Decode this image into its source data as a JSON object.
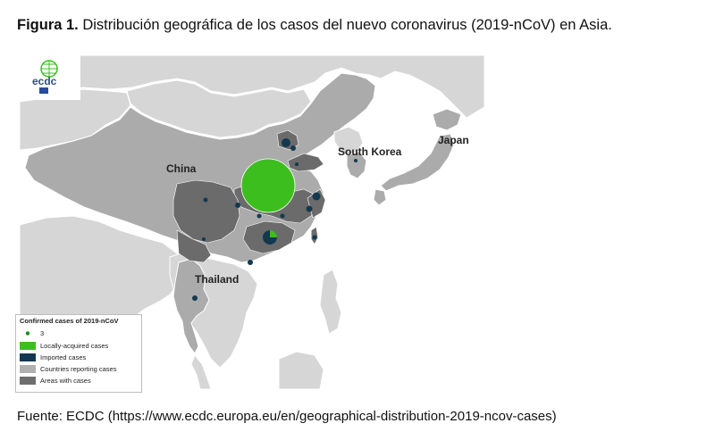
{
  "caption": {
    "bold": "Figura 1.",
    "text": " Distribución geográfica de los casos del nuevo coronavirus (2019-nCoV) en Asia."
  },
  "source": "Fuente: ECDC (https://www.ecdc.europa.eu/en/geographical-distribution-2019-ncov-cases)",
  "logo": {
    "text": "ecdc"
  },
  "map_labels": {
    "china": "China",
    "south_korea": "South Korea",
    "japan": "Japan",
    "thailand": "Thailand"
  },
  "legend": {
    "title": "Confirmed cases of 2019-nCoV",
    "items": [
      {
        "label": "3",
        "color": "#1e8a1e"
      },
      {
        "label": "Locally-acquired cases",
        "color": "#3cbf1e"
      },
      {
        "label": "Imported cases",
        "color": "#12394f"
      },
      {
        "label": "Countries reporting cases",
        "color": "#b0b0b0"
      },
      {
        "label": "Areas with cases",
        "color": "#6e6e6e"
      }
    ]
  },
  "colors": {
    "sea": "#ffffff",
    "other_land": "#d9d9d9",
    "reporting_country": "#ababab",
    "area_with_cases": "#6b6b6b",
    "locally_acquired": "#3cbf1e",
    "imported": "#12394f"
  }
}
